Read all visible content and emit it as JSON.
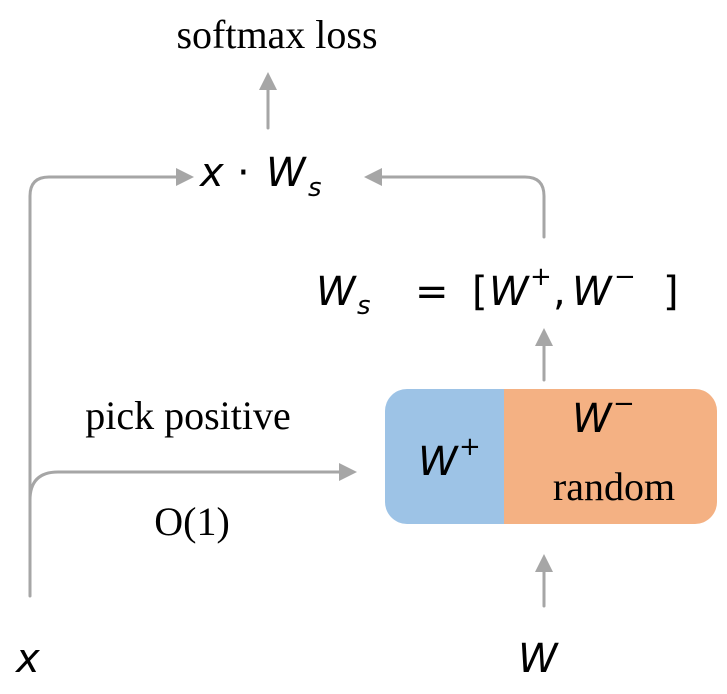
{
  "labels": {
    "softmax_loss": "softmax loss",
    "pick_positive": "pick positive",
    "complexity": "O(1)",
    "random": "random"
  },
  "math": {
    "x": "x",
    "W": "W",
    "dot": "·",
    "s": "s",
    "equals": "=",
    "open_bracket": "[",
    "close_bracket": "]",
    "comma": ",",
    "plus": "+",
    "minus": "−"
  },
  "colors": {
    "positive_block": "#9dc3e6",
    "negative_block": "#f4b183",
    "arrow": "#a6a6a6"
  }
}
